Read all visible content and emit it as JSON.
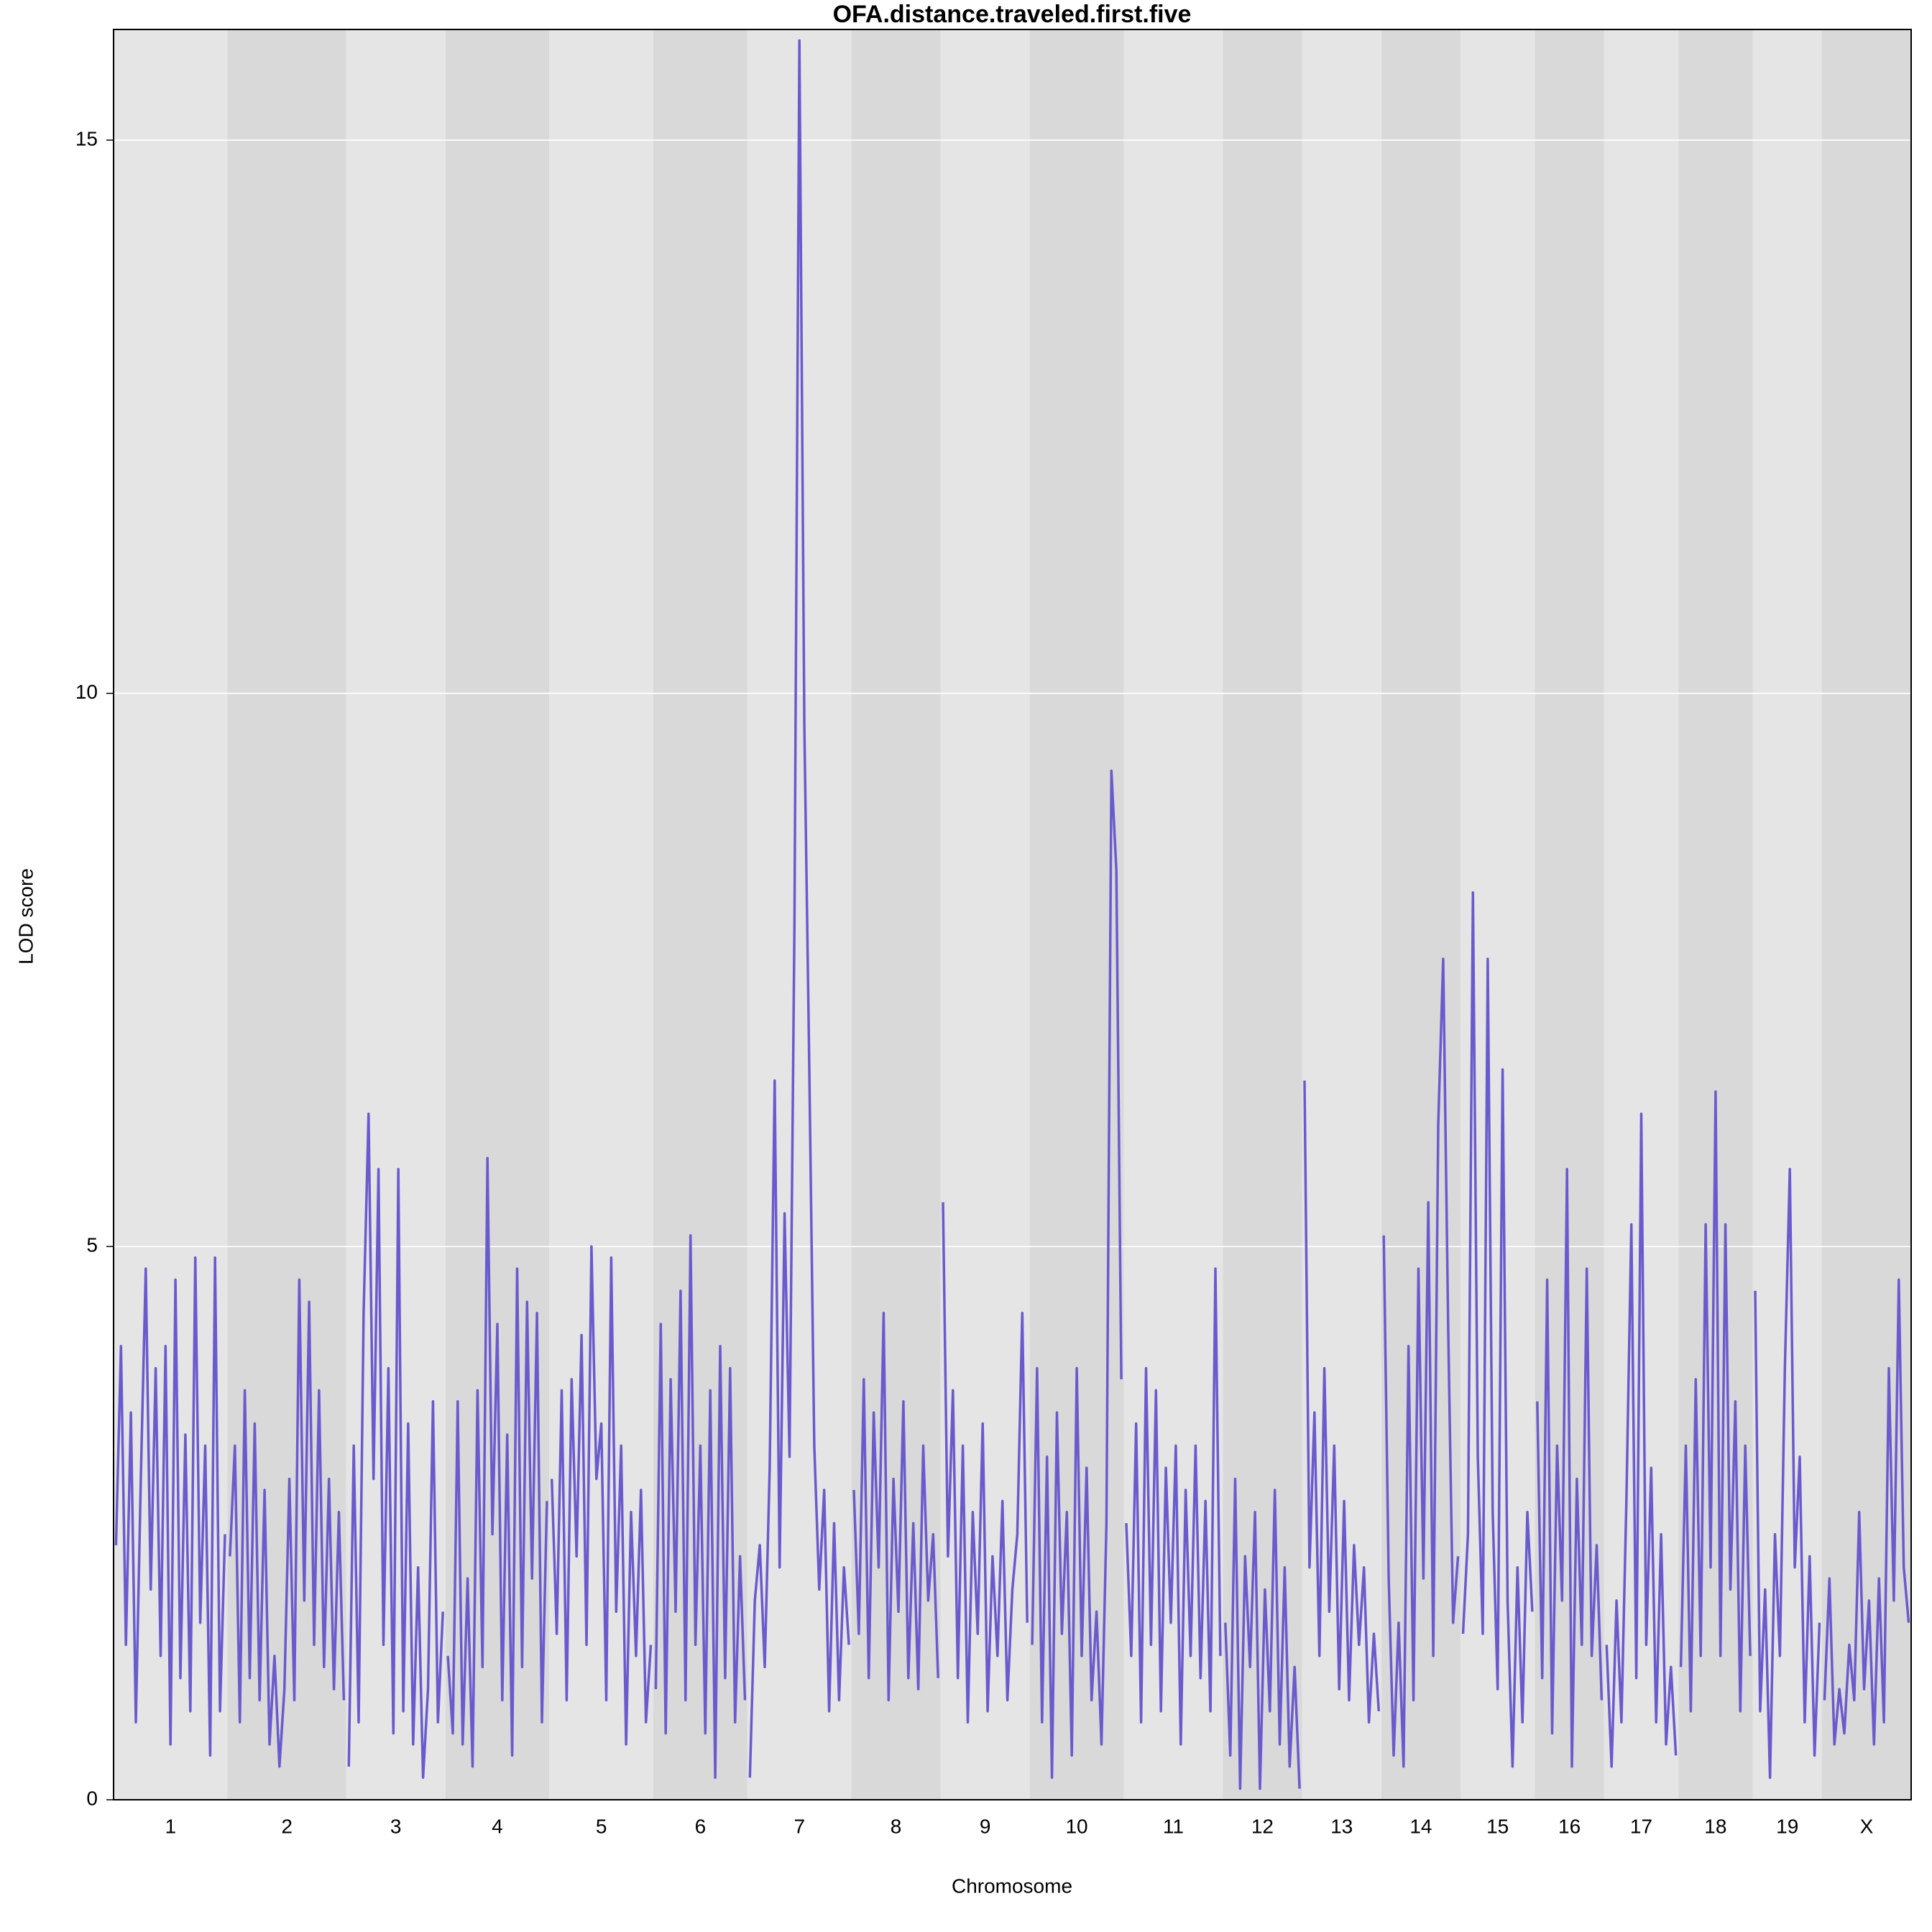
{
  "chart_data": {
    "type": "lod",
    "title": "OFA.distance.traveled.first.five",
    "x_label": "Chromosome",
    "y_label": "LOD score",
    "color": "#6a5acd",
    "band_colors": [
      "#e5e5e5",
      "#d9d9d9"
    ],
    "grid": true,
    "ylim": [
      0,
      16
    ],
    "yticks": [
      0,
      5,
      10,
      15
    ],
    "chromosomes": [
      {
        "label": "1",
        "values": [
          2.3,
          4.1,
          1.4,
          3.5,
          0.7,
          2.9,
          4.8,
          1.9,
          3.9,
          1.3,
          4.1,
          0.5,
          4.7,
          1.1,
          3.3,
          0.8,
          4.9,
          1.6,
          3.2,
          0.4,
          4.9,
          0.8,
          2.4
        ]
      },
      {
        "label": "2",
        "values": [
          2.2,
          3.2,
          0.7,
          3.7,
          1.1,
          3.4,
          0.9,
          2.8,
          0.5,
          1.3,
          0.3,
          1.0,
          2.9,
          0.9,
          4.7,
          1.8,
          4.5,
          1.4,
          3.7,
          1.2,
          2.9,
          1.0,
          2.6,
          0.9
        ]
      },
      {
        "label": "3",
        "values": [
          0.3,
          3.2,
          0.7,
          4.4,
          6.2,
          2.9,
          5.7,
          1.4,
          3.9,
          0.6,
          5.7,
          0.8,
          3.4,
          0.5,
          2.1,
          0.2,
          1.0,
          3.6,
          0.7,
          1.7
        ]
      },
      {
        "label": "4",
        "values": [
          1.3,
          0.6,
          3.6,
          0.5,
          2.0,
          0.3,
          3.7,
          1.2,
          5.8,
          2.4,
          4.3,
          0.9,
          3.3,
          0.4,
          4.8,
          1.2,
          4.5,
          2.0,
          4.4,
          0.7,
          2.7
        ]
      },
      {
        "label": "5",
        "values": [
          2.9,
          1.5,
          3.7,
          0.9,
          3.8,
          2.2,
          4.2,
          1.4,
          5.0,
          2.9,
          3.4,
          0.9,
          4.9,
          1.7,
          3.2,
          0.5,
          2.6,
          1.3,
          2.8,
          0.7,
          1.4
        ]
      },
      {
        "label": "6",
        "values": [
          1.0,
          4.3,
          0.6,
          3.8,
          1.7,
          4.6,
          0.9,
          5.1,
          1.4,
          3.2,
          0.6,
          3.7,
          0.2,
          4.1,
          1.1,
          3.9,
          0.7,
          2.2,
          0.9
        ]
      },
      {
        "label": "7",
        "values": [
          0.2,
          1.8,
          2.3,
          1.2,
          3.0,
          6.5,
          2.1,
          5.3,
          3.1,
          7.9,
          15.9,
          9.7,
          6.6,
          3.2,
          1.9,
          2.8,
          0.8,
          2.5,
          0.9,
          2.1,
          1.4
        ]
      },
      {
        "label": "8",
        "values": [
          2.8,
          1.5,
          3.8,
          1.1,
          3.5,
          2.1,
          4.4,
          0.9,
          2.9,
          1.7,
          3.6,
          1.1,
          2.5,
          1.0,
          3.2,
          1.8,
          2.4,
          1.1
        ]
      },
      {
        "label": "9",
        "values": [
          5.4,
          2.2,
          3.7,
          1.1,
          3.2,
          0.7,
          2.6,
          1.5,
          3.4,
          0.8,
          2.2,
          1.3,
          2.7,
          0.9,
          1.9,
          2.4,
          4.4,
          1.6
        ]
      },
      {
        "label": "10",
        "values": [
          1.4,
          3.9,
          0.7,
          3.1,
          0.2,
          3.5,
          1.5,
          2.6,
          0.4,
          3.9,
          1.3,
          3.0,
          0.9,
          1.7,
          0.5,
          2.5,
          9.3,
          8.4,
          3.8
        ]
      },
      {
        "label": "11",
        "values": [
          2.5,
          1.3,
          3.4,
          0.7,
          3.9,
          1.4,
          3.7,
          0.8,
          3.0,
          1.6,
          3.2,
          0.5,
          2.8,
          1.3,
          3.2,
          1.1,
          2.7,
          0.8,
          4.8,
          1.3
        ]
      },
      {
        "label": "12",
        "values": [
          1.6,
          0.4,
          2.9,
          0.1,
          2.2,
          1.2,
          2.6,
          0.1,
          1.9,
          0.8,
          2.8,
          0.5,
          2.1,
          0.3,
          1.2,
          0.1
        ]
      },
      {
        "label": "13",
        "values": [
          6.5,
          2.1,
          3.5,
          1.3,
          3.9,
          1.7,
          3.2,
          1.0,
          2.7,
          0.9,
          2.3,
          1.4,
          2.1,
          0.7,
          1.5,
          0.8
        ]
      },
      {
        "label": "14",
        "values": [
          5.1,
          2.0,
          0.4,
          1.6,
          0.3,
          4.1,
          0.9,
          4.8,
          2.0,
          5.4,
          1.3,
          6.1,
          7.6,
          4.3,
          1.6,
          2.2
        ]
      },
      {
        "label": "15",
        "values": [
          1.5,
          2.4,
          8.2,
          3.1,
          1.5,
          7.6,
          2.6,
          1.0,
          6.6,
          1.8,
          0.3,
          2.1,
          0.7,
          2.6,
          1.7
        ]
      },
      {
        "label": "16",
        "values": [
          3.6,
          1.1,
          4.7,
          0.6,
          3.2,
          1.8,
          5.7,
          0.3,
          2.9,
          1.4,
          4.8,
          1.3,
          2.3,
          0.9
        ]
      },
      {
        "label": "17",
        "values": [
          1.4,
          0.3,
          1.8,
          0.7,
          2.7,
          5.2,
          1.1,
          6.2,
          1.4,
          3.0,
          0.7,
          2.4,
          0.5,
          1.2,
          0.4
        ]
      },
      {
        "label": "18",
        "values": [
          1.2,
          3.2,
          0.8,
          3.8,
          1.3,
          5.2,
          2.1,
          6.4,
          1.3,
          5.2,
          1.9,
          3.6,
          0.8,
          3.2,
          1.3
        ]
      },
      {
        "label": "19",
        "values": [
          4.6,
          0.8,
          1.9,
          0.2,
          2.4,
          1.3,
          3.9,
          5.7,
          2.1,
          3.1,
          0.7,
          2.2,
          0.4,
          1.6
        ]
      },
      {
        "label": "X",
        "values": [
          0.9,
          2.0,
          0.5,
          1.0,
          0.6,
          1.4,
          0.9,
          2.6,
          1.0,
          1.8,
          0.5,
          2.0,
          0.7,
          3.9,
          1.8,
          4.7,
          2.1,
          1.6
        ]
      }
    ]
  }
}
